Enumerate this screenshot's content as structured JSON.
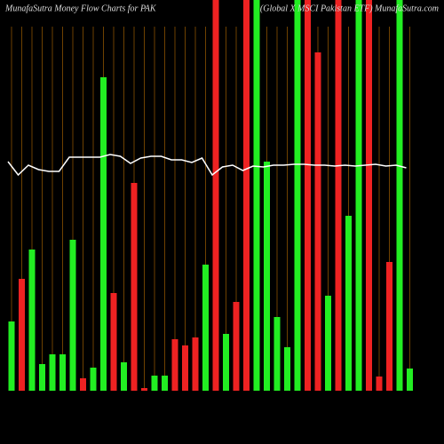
{
  "chart_data": {
    "type": "bar",
    "title": "MunafaSutra  Money Flow  Charts for PAK",
    "subtitle": "(Global X MSCI Pakistan ETF) MunafaSutra.com",
    "values": [
      78,
      126,
      159,
      30,
      41,
      41,
      170,
      14,
      26,
      353,
      110,
      32,
      234,
      3,
      17,
      17,
      58,
      51,
      60,
      142,
      440,
      64,
      100,
      440,
      440,
      258,
      83,
      49,
      440,
      440,
      381,
      107,
      440,
      197,
      440,
      440,
      16,
      145,
      440,
      25
    ],
    "colors": [
      "#22ee22",
      "#ee2222",
      "#22ee22",
      "#22ee22",
      "#22ee22",
      "#22ee22",
      "#22ee22",
      "#ee2222",
      "#22ee22",
      "#22ee22",
      "#ee2222",
      "#22ee22",
      "#ee2222",
      "#ee2222",
      "#22ee22",
      "#22ee22",
      "#ee2222",
      "#ee2222",
      "#ee2222",
      "#22ee22",
      "#ee2222",
      "#22ee22",
      "#ee2222",
      "#ee2222",
      "#22ee22",
      "#22ee22",
      "#22ee22",
      "#22ee22",
      "#22ee22",
      "#ee2222",
      "#ee2222",
      "#22ee22",
      "#ee2222",
      "#22ee22",
      "#22ee22",
      "#ee2222",
      "#ee2222",
      "#ee2222",
      "#22ee22",
      "#22ee22"
    ],
    "line_values": [
      258,
      243,
      254,
      249,
      247,
      247,
      263,
      263,
      263,
      263,
      266,
      264,
      256,
      262,
      264,
      264,
      260,
      260,
      257,
      262,
      243,
      252,
      254,
      248,
      253,
      252,
      254,
      254,
      255,
      255,
      254,
      254,
      253,
      254,
      253,
      254,
      255,
      253,
      254,
      251
    ],
    "line_color": "#ffffff",
    "grid_color": "#8a5200",
    "ylim": [
      0,
      440
    ]
  }
}
